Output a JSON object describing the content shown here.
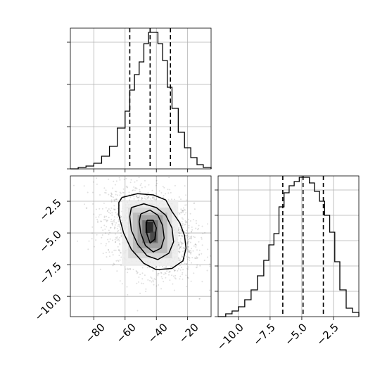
{
  "chart_data": [
    {
      "panel": "marginal-x",
      "type": "histogram",
      "xlim": [
        -95,
        -5
      ],
      "bins": [
        {
          "x0": -95,
          "x1": -90,
          "count": 0
        },
        {
          "x0": -90,
          "x1": -85,
          "count": 1
        },
        {
          "x0": -85,
          "x1": -80,
          "count": 2
        },
        {
          "x0": -80,
          "x1": -75,
          "count": 4
        },
        {
          "x0": -75,
          "x1": -70,
          "count": 9
        },
        {
          "x0": -70,
          "x1": -65,
          "count": 16
        },
        {
          "x0": -65,
          "x1": -60,
          "count": 29
        },
        {
          "x0": -60,
          "x1": -57,
          "count": 41
        },
        {
          "x0": -57,
          "x1": -54,
          "count": 56
        },
        {
          "x0": -54,
          "x1": -51,
          "count": 67
        },
        {
          "x0": -51,
          "x1": -48,
          "count": 76
        },
        {
          "x0": -48,
          "x1": -45,
          "count": 89
        },
        {
          "x0": -45,
          "x1": -42,
          "count": 97
        },
        {
          "x0": -42,
          "x1": -39,
          "count": 97
        },
        {
          "x0": -39,
          "x1": -36,
          "count": 89
        },
        {
          "x0": -36,
          "x1": -33,
          "count": 77
        },
        {
          "x0": -33,
          "x1": -30,
          "count": 58
        },
        {
          "x0": -30,
          "x1": -26,
          "count": 43
        },
        {
          "x0": -26,
          "x1": -22,
          "count": 26
        },
        {
          "x0": -22,
          "x1": -18,
          "count": 15
        },
        {
          "x0": -18,
          "x1": -14,
          "count": 8
        },
        {
          "x0": -14,
          "x1": -10,
          "count": 3
        },
        {
          "x0": -10,
          "x1": -5,
          "count": 1
        }
      ],
      "ylim": [
        0,
        100
      ],
      "yticks": [
        0,
        30,
        60,
        90
      ],
      "xticks": [
        -80,
        -60,
        -40,
        -20
      ],
      "quantiles": [
        -57,
        -44,
        -31
      ]
    },
    {
      "panel": "marginal-y",
      "type": "histogram",
      "xlim": [
        -11.6,
        -0.5
      ],
      "bins": [
        {
          "x0": -11.6,
          "x1": -11.0,
          "count": 0
        },
        {
          "x0": -11.0,
          "x1": -10.5,
          "count": 2
        },
        {
          "x0": -10.5,
          "x1": -10.0,
          "count": 4
        },
        {
          "x0": -10.0,
          "x1": -9.5,
          "count": 7
        },
        {
          "x0": -9.5,
          "x1": -9.0,
          "count": 12
        },
        {
          "x0": -9.0,
          "x1": -8.5,
          "count": 19
        },
        {
          "x0": -8.5,
          "x1": -8.0,
          "count": 29
        },
        {
          "x0": -8.0,
          "x1": -7.6,
          "count": 40
        },
        {
          "x0": -7.6,
          "x1": -7.2,
          "count": 51
        },
        {
          "x0": -7.2,
          "x1": -6.8,
          "count": 59
        },
        {
          "x0": -6.8,
          "x1": -6.4,
          "count": 78
        },
        {
          "x0": -6.4,
          "x1": -6.0,
          "count": 88
        },
        {
          "x0": -6.0,
          "x1": -5.6,
          "count": 93
        },
        {
          "x0": -5.6,
          "x1": -5.2,
          "count": 96
        },
        {
          "x0": -5.2,
          "x1": -4.8,
          "count": 99
        },
        {
          "x0": -4.8,
          "x1": -4.4,
          "count": 99
        },
        {
          "x0": -4.4,
          "x1": -4.0,
          "count": 95
        },
        {
          "x0": -4.0,
          "x1": -3.6,
          "count": 89
        },
        {
          "x0": -3.6,
          "x1": -3.2,
          "count": 82
        },
        {
          "x0": -3.2,
          "x1": -2.8,
          "count": 72
        },
        {
          "x0": -2.8,
          "x1": -2.4,
          "count": 60
        },
        {
          "x0": -2.4,
          "x1": -2.0,
          "count": 39
        },
        {
          "x0": -2.0,
          "x1": -1.5,
          "count": 19
        },
        {
          "x0": -1.5,
          "x1": -1.0,
          "count": 6
        },
        {
          "x0": -1.0,
          "x1": -0.5,
          "count": 3
        }
      ],
      "ylim": [
        0,
        100
      ],
      "yticks": [
        0,
        18,
        36,
        54,
        72,
        90
      ],
      "xticks": [
        -10.0,
        -7.5,
        -5.0,
        -2.5
      ],
      "xtick_labels": [
        "−10.0",
        "−7.5",
        "−5.0",
        "−2.5"
      ],
      "quantiles": [
        -6.5,
        -4.9,
        -3.3
      ]
    },
    {
      "panel": "joint",
      "type": "2d-histogram-contour",
      "xlim": [
        -95,
        -5
      ],
      "ylim": [
        -11.6,
        -0.5
      ],
      "y_inverted": true,
      "xticks": [
        -80,
        -60,
        -40,
        -20
      ],
      "xtick_labels": [
        "−80",
        "−60",
        "−40",
        "−20"
      ],
      "yticks": [
        -2.5,
        -5.0,
        -7.5,
        -10.0
      ],
      "ytick_labels": [
        "−2.5",
        "−5.0",
        "−7.5",
        "−10.0"
      ],
      "sample_center": [
        -44,
        -4.9
      ],
      "sample_spread": [
        14,
        1.7
      ],
      "correlation": 0.3,
      "sample_count": 2200,
      "density_blocks": [
        {
          "x0": -62,
          "x1": -26,
          "y0": -2.4,
          "y1": -7.6,
          "shade": "#ececec"
        },
        {
          "x0": -58,
          "x1": -30,
          "y0": -3.0,
          "y1": -7.0,
          "shade": "#d6d6d6"
        },
        {
          "x0": -55,
          "x1": -33,
          "y0": -3.4,
          "y1": -6.6,
          "shade": "#b9b9b9"
        },
        {
          "x0": -52,
          "x1": -36,
          "y0": -3.6,
          "y1": -6.2,
          "shade": "#9b9b9b"
        },
        {
          "x0": -49,
          "x1": -39,
          "y0": -4.0,
          "y1": -5.8,
          "shade": "#6f6f6f"
        },
        {
          "x0": -47,
          "x1": -42,
          "y0": -4.1,
          "y1": -5.0,
          "shade": "#1e1e1e"
        },
        {
          "x0": -44,
          "x1": -40,
          "y0": -4.9,
          "y1": -5.7,
          "shade": "#444444"
        }
      ],
      "contours": [
        {
          "level": "outer",
          "points": [
            [
              -62,
              -2.2
            ],
            [
              -52,
              -1.9
            ],
            [
              -42,
              -2.0
            ],
            [
              -34,
              -2.4
            ],
            [
              -30,
              -3.3
            ],
            [
              -25,
              -4.2
            ],
            [
              -22,
              -5.2
            ],
            [
              -21,
              -6.2
            ],
            [
              -23,
              -7.2
            ],
            [
              -30,
              -7.8
            ],
            [
              -40,
              -7.9
            ],
            [
              -48,
              -7.4
            ],
            [
              -56,
              -6.3
            ],
            [
              -61,
              -5.0
            ],
            [
              -64,
              -3.6
            ],
            [
              -64,
              -2.6
            ],
            [
              -62,
              -2.2
            ]
          ]
        },
        {
          "level": "middle",
          "points": [
            [
              -56,
              -3.0
            ],
            [
              -48,
              -2.7
            ],
            [
              -40,
              -3.0
            ],
            [
              -34,
              -3.6
            ],
            [
              -30,
              -4.6
            ],
            [
              -29,
              -5.7
            ],
            [
              -32,
              -6.6
            ],
            [
              -39,
              -7.1
            ],
            [
              -46,
              -6.8
            ],
            [
              -52,
              -5.9
            ],
            [
              -56,
              -4.8
            ],
            [
              -57,
              -3.7
            ],
            [
              -56,
              -3.0
            ]
          ]
        },
        {
          "level": "inner",
          "points": [
            [
              -50,
              -3.5
            ],
            [
              -44,
              -3.2
            ],
            [
              -39,
              -3.6
            ],
            [
              -36,
              -4.4
            ],
            [
              -35,
              -5.4
            ],
            [
              -37,
              -6.2
            ],
            [
              -42,
              -6.5
            ],
            [
              -47,
              -6.0
            ],
            [
              -50,
              -5.0
            ],
            [
              -51,
              -4.1
            ],
            [
              -50,
              -3.5
            ]
          ]
        },
        {
          "level": "core",
          "points": [
            [
              -46,
              -4.0
            ],
            [
              -42,
              -4.0
            ],
            [
              -40,
              -4.6
            ],
            [
              -41,
              -5.5
            ],
            [
              -44,
              -5.8
            ],
            [
              -46,
              -5.1
            ],
            [
              -46.5,
              -4.5
            ],
            [
              -46,
              -4.0
            ]
          ]
        }
      ]
    }
  ],
  "xlabels": {
    "joint_x": [
      "−80",
      "−60",
      "−40",
      "−20"
    ],
    "joint_y": [
      "−2.5",
      "−5.0",
      "−7.5",
      "−10.0"
    ],
    "marginal_y_x": [
      "−10.0",
      "−7.5",
      "−5.0",
      "−2.5"
    ]
  }
}
